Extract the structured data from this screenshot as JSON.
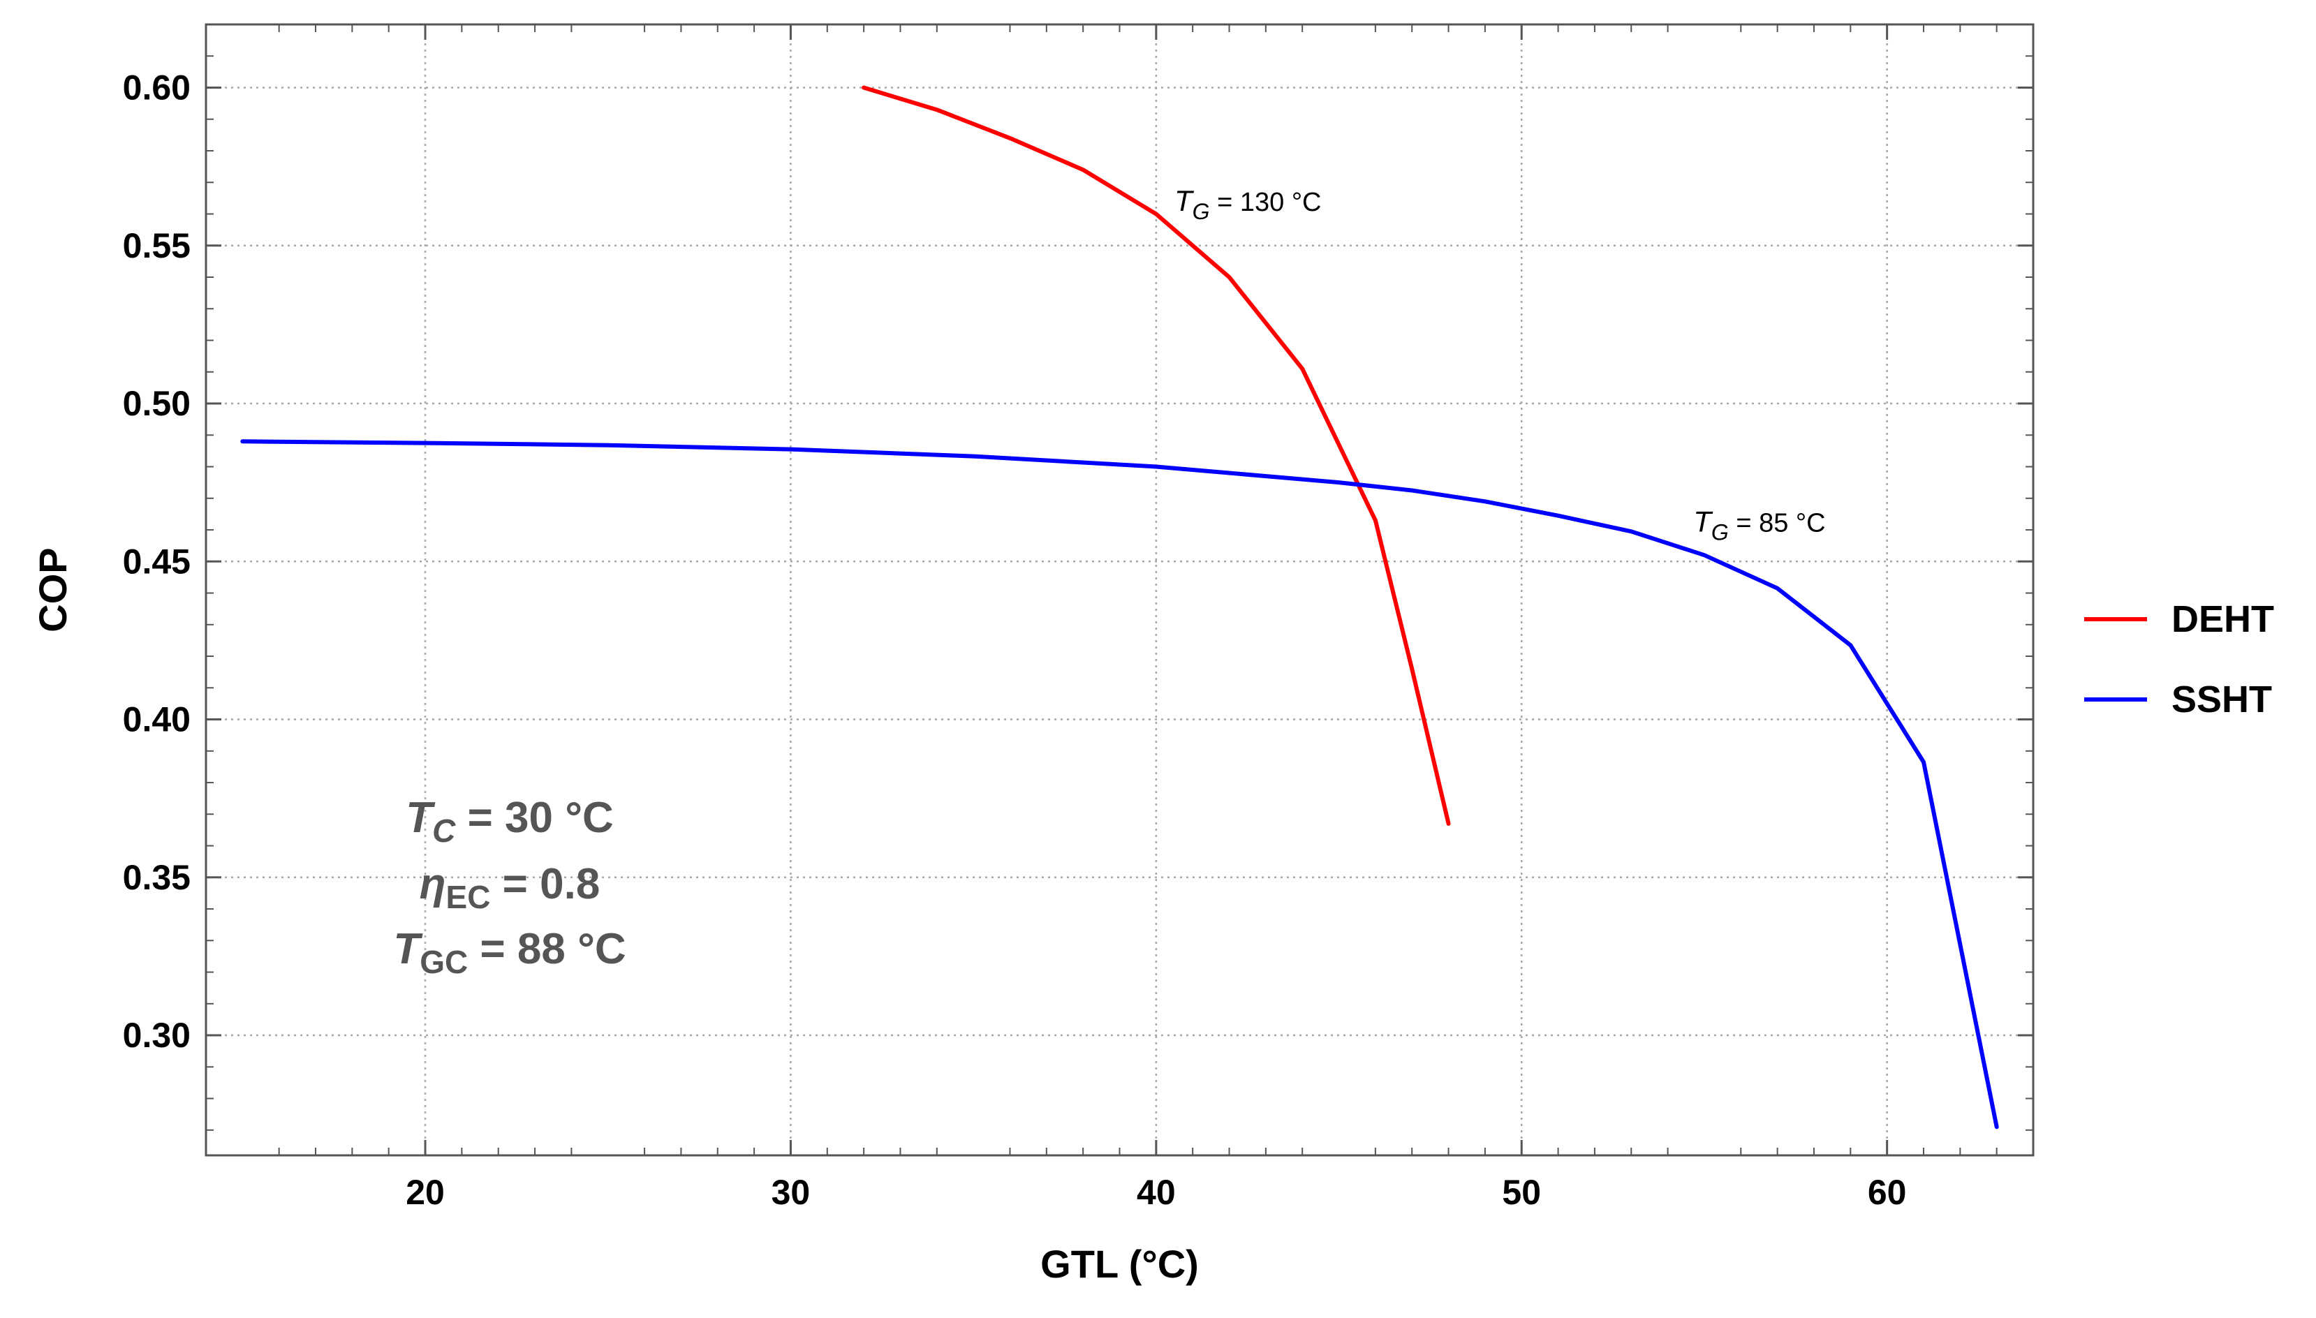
{
  "chart_data": {
    "type": "line",
    "xlabel": "GTL (°C)",
    "ylabel": "COP",
    "xlim": [
      14,
      64
    ],
    "ylim": [
      0.262,
      0.62
    ],
    "x_ticks": [
      20,
      30,
      40,
      50,
      60
    ],
    "y_ticks": [
      0.3,
      0.35,
      0.4,
      0.45,
      0.5,
      0.55,
      0.6
    ],
    "x_tick_labels": [
      "20",
      "30",
      "40",
      "50",
      "60"
    ],
    "y_tick_labels": [
      "0.30",
      "0.35",
      "0.40",
      "0.45",
      "0.50",
      "0.55",
      "0.60"
    ],
    "grid": true,
    "legend_position": "right",
    "series": [
      {
        "name": "DEHT",
        "color": "#ff0000",
        "x": [
          32,
          34,
          36,
          38,
          40,
          42,
          44,
          45,
          46,
          47,
          48
        ],
        "y": [
          0.6,
          0.593,
          0.584,
          0.574,
          0.56,
          0.54,
          0.511,
          0.487,
          0.463,
          0.416,
          0.367
        ]
      },
      {
        "name": "SSHT",
        "color": "#0000ff",
        "x": [
          15,
          20,
          25,
          30,
          35,
          40,
          45,
          47,
          49,
          51,
          53,
          55,
          57,
          59,
          61,
          63
        ],
        "y": [
          0.488,
          0.4875,
          0.4868,
          0.4855,
          0.4833,
          0.48,
          0.475,
          0.4725,
          0.469,
          0.4645,
          0.4595,
          0.452,
          0.4415,
          0.4235,
          0.3865,
          0.271
        ]
      }
    ],
    "annotations": [
      {
        "series": "DEHT",
        "symbol": "T",
        "subscript": "G",
        "text": " = 130 °C",
        "x": 40.5,
        "y": 0.561
      },
      {
        "series": "SSHT",
        "symbol": "T",
        "subscript": "G",
        "text": " = 85 °C",
        "x": 54.7,
        "y": 0.4595
      }
    ],
    "parameters": [
      {
        "symbol": "T",
        "subscript": "C",
        "text": " = 30 °C"
      },
      {
        "symbol": "η",
        "subscript": "EC",
        "text": " = 0.8"
      },
      {
        "symbol": "T",
        "subscript": "GC",
        "text": " = 88 °C"
      }
    ]
  }
}
